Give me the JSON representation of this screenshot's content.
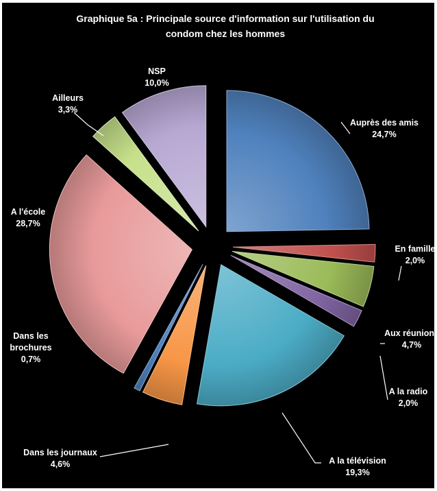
{
  "chart_data": {
    "type": "pie",
    "title_lines": [
      "Graphique 5a : Principale source d'information sur l'utilisation du",
      "condom chez les hommes"
    ],
    "unit": "%",
    "slices": [
      {
        "name": "Auprès des amis",
        "value": 24.7,
        "value_label": "24,7%",
        "color": "#4f81bd"
      },
      {
        "name": "En famille",
        "value": 2.0,
        "value_label": "2,0%",
        "color": "#c0504d"
      },
      {
        "name": "Aux réunions",
        "value": 4.7,
        "value_label": "4,7%",
        "color": "#9bbb59"
      },
      {
        "name": "A la radio",
        "value": 2.0,
        "value_label": "2,0%",
        "color": "#8064a2"
      },
      {
        "name": "A la télévision",
        "value": 19.3,
        "value_label": "19,3%",
        "color": "#4bacc6"
      },
      {
        "name": "Dans les journaux",
        "value": 4.6,
        "value_label": "4,6%",
        "color": "#f79646"
      },
      {
        "name": "Dans les brochures",
        "value": 0.7,
        "value_label": "0,7%",
        "color": "#4f81bd"
      },
      {
        "name": "A l'école",
        "value": 28.7,
        "value_label": "28,7%",
        "color": "#e89a9a"
      },
      {
        "name": "Ailleurs",
        "value": 3.3,
        "value_label": "3,3%",
        "color": "#c6e08a"
      },
      {
        "name": "NSP",
        "value": 10.0,
        "value_label": "10,0%",
        "color": "#b7a8d3"
      }
    ],
    "legend": "none"
  },
  "label_texts": [
    [
      "Auprès des amis",
      "24,7%"
    ],
    [
      "En famille",
      "2,0%"
    ],
    [
      "Aux réunions",
      "4,7%"
    ],
    [
      "A la radio",
      "2,0%"
    ],
    [
      "A la télévision",
      "19,3%"
    ],
    [
      "Dans les journaux",
      "4,6%"
    ],
    [
      "Dans les",
      "brochures",
      "0,7%"
    ],
    [
      "A l'école",
      "28,7%"
    ],
    [
      "Ailleurs",
      "3,3%"
    ],
    [
      "NSP",
      "10,0%"
    ]
  ]
}
